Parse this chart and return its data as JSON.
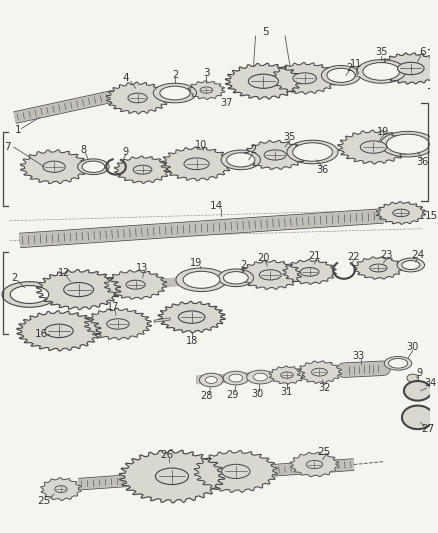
{
  "bg_color": "#f5f5f0",
  "gear_fill": "#d8d8d0",
  "gear_edge": "#444444",
  "gear_dark": "#888880",
  "shaft_fill": "#c0c0b8",
  "shaft_edge": "#444444",
  "line_color": "#555555",
  "label_color": "#333333",
  "white": "#ffffff"
}
